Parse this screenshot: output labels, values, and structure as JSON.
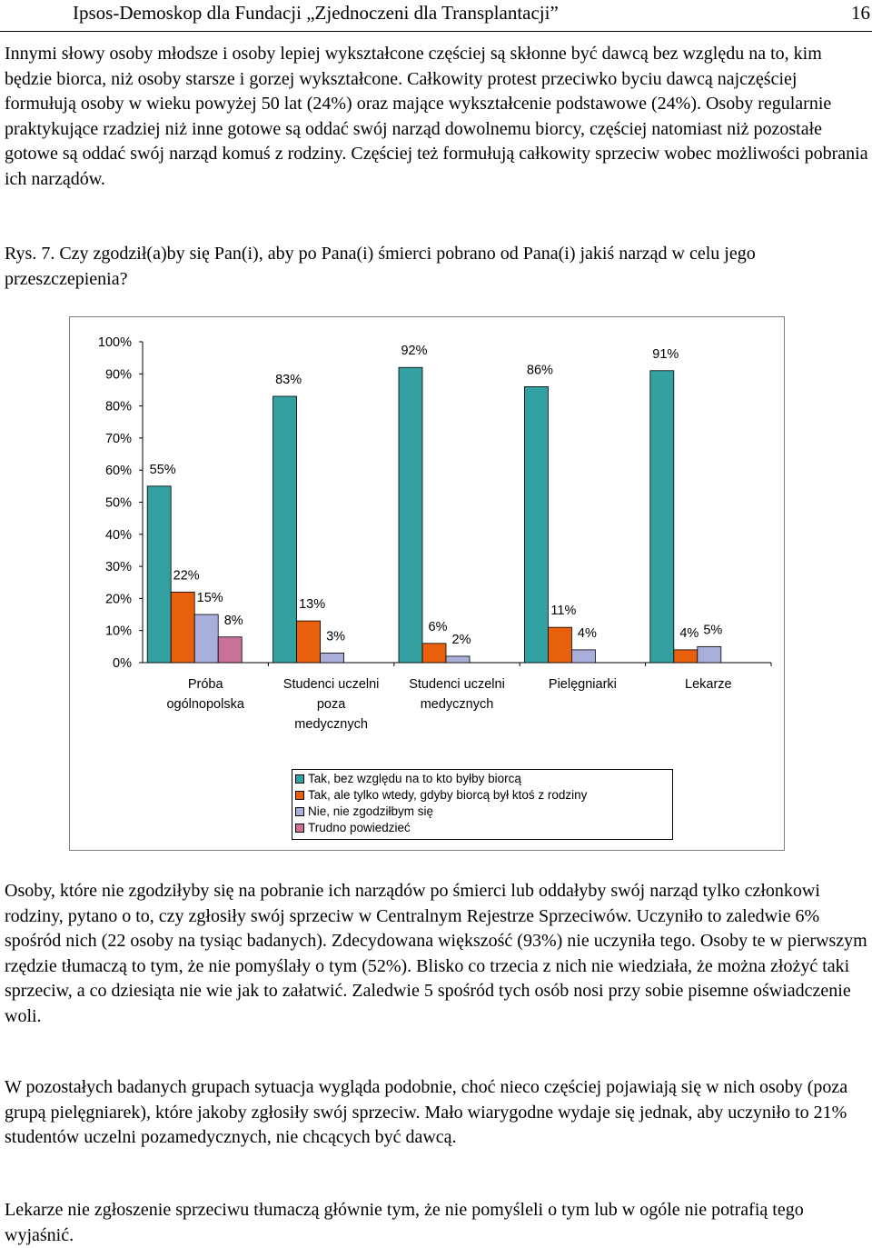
{
  "header": {
    "title": "Ipsos-Demoskop dla Fundacji „Zjednoczeni dla Transplantacji”",
    "page_number": "16"
  },
  "paragraphs": [
    "Innymi słowy osoby młodsze i osoby lepiej wykształcone częściej są skłonne być dawcą bez względu na to, kim będzie biorca, niż osoby starsze i gorzej wykształcone. Całkowity protest przeciwko byciu dawcą najczęściej formułują osoby w wieku powyżej 50 lat (24%) oraz mające wykształcenie podstawowe (24%). Osoby regularnie praktykujące rzadziej niż inne gotowe są oddać swój narząd dowolnemu biorcy, częściej natomiast niż pozostałe gotowe są oddać swój narząd komuś z rodziny. Częściej też formułują całkowity sprzeciw wobec możliwości pobrania ich narządów.",
    "Rys. 7. Czy zgodził(a)by się Pan(i), aby po Pana(i) śmierci pobrano od Pana(i) jakiś narząd w celu jego przeszczepienia?",
    "Osoby, które nie zgodziłyby się na pobranie ich narządów po śmierci lub oddałyby swój narząd tylko członkowi rodziny, pytano o to, czy zgłosiły swój sprzeciw w Centralnym Rejestrze Sprzeciwów. Uczyniło to zaledwie 6% spośród nich (22 osoby na tysiąc badanych). Zdecydowana większość (93%) nie uczyniła tego. Osoby te w pierwszym rzędzie tłumaczą to tym, że nie pomyślały o tym (52%). Blisko co trzecia z nich nie wiedziała, że można złożyć taki sprzeciw, a co dziesiąta nie wie jak to załatwić. Zaledwie 5 spośród tych osób nosi przy sobie pisemne oświadczenie woli.",
    "W pozostałych badanych grupach sytuacja wygląda podobnie, choć nieco częściej pojawiają się w nich osoby (poza grupą pielęgniarek), które jakoby zgłosiły swój sprzeciw. Mało wiarygodne wydaje się jednak, aby uczyniło to 21% studentów uczelni pozamedycznych, nie chcących być dawcą.",
    "Lekarze nie zgłoszenie sprzeciwu tłumaczą głównie tym, że nie pomyśleli o tym lub w ogóle nie potrafią tego wyjaśnić."
  ],
  "chart_data": {
    "type": "bar",
    "categories": [
      [
        "Próba",
        "ogólnopolska"
      ],
      [
        "Studenci uczelni",
        "poza",
        "medycznych"
      ],
      [
        "Studenci uczelni",
        "medycznych"
      ],
      [
        "Pielęgniarki"
      ],
      [
        "Lekarze"
      ]
    ],
    "series": [
      {
        "name": "Tak, bez względu na to kto byłby biorcą",
        "color": "#33a1a1",
        "values": [
          55,
          83,
          92,
          86,
          91
        ],
        "labels": [
          "55%",
          "83%",
          "92%",
          "86%",
          "91%"
        ]
      },
      {
        "name": "Tak, ale tylko wtedy, gdyby biorcą był ktoś z rodziny",
        "color": "#e85f0c",
        "values": [
          22,
          13,
          6,
          11,
          4
        ],
        "labels": [
          "22%",
          "13%",
          "6%",
          "11%",
          "4%"
        ]
      },
      {
        "name": "Nie, nie zgodziłbym się",
        "color": "#a9aedb",
        "values": [
          15,
          3,
          2,
          4,
          5
        ],
        "labels": [
          "15%",
          "3%",
          "2%",
          "4%",
          "5%"
        ]
      },
      {
        "name": "Trudno powiedzieć",
        "color": "#c8729a",
        "values": [
          8,
          null,
          null,
          null,
          null
        ],
        "labels": [
          "8%",
          "",
          "",
          "",
          ""
        ]
      }
    ],
    "yticks": [
      "0%",
      "10%",
      "20%",
      "30%",
      "40%",
      "50%",
      "60%",
      "70%",
      "80%",
      "90%",
      "100%"
    ],
    "ylim": [
      0,
      100
    ],
    "legend_position": "bottom"
  }
}
